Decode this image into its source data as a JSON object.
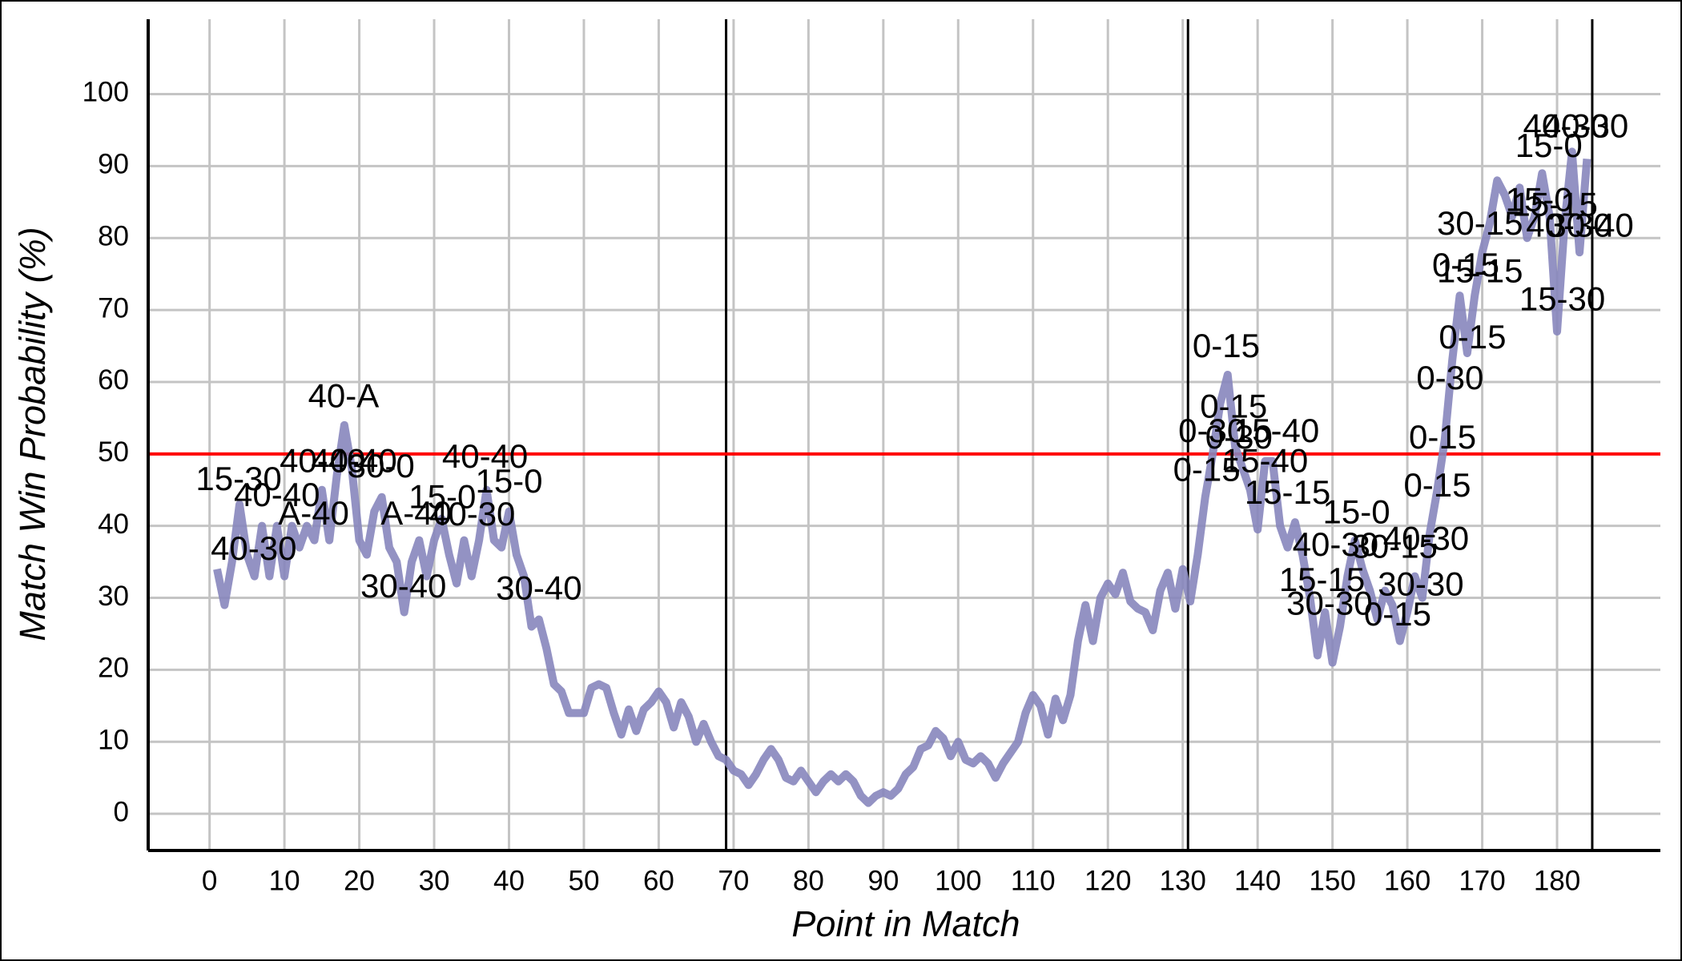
{
  "chart_data": {
    "type": "line",
    "x_label": "Point in Match",
    "y_label": "Match Win Probability (%)",
    "x": [
      1,
      2,
      3,
      4,
      5,
      6,
      7,
      8,
      9,
      10,
      11,
      12,
      13,
      14,
      15,
      16,
      17,
      18,
      19,
      20,
      21,
      22,
      23,
      24,
      25,
      26,
      27,
      28,
      29,
      30,
      31,
      32,
      33,
      34,
      35,
      36,
      37,
      38,
      39,
      40,
      41,
      42,
      43,
      44,
      45,
      46,
      47,
      48,
      49,
      50,
      51,
      52,
      53,
      54,
      55,
      56,
      57,
      58,
      59,
      60,
      61,
      62,
      63,
      64,
      65,
      66,
      67,
      68,
      69,
      70,
      71,
      72,
      73,
      74,
      75,
      76,
      77,
      78,
      79,
      80,
      81,
      82,
      83,
      84,
      85,
      86,
      87,
      88,
      89,
      90,
      91,
      92,
      93,
      94,
      95,
      96,
      97,
      98,
      99,
      100,
      101,
      102,
      103,
      104,
      105,
      106,
      107,
      108,
      109,
      110,
      111,
      112,
      113,
      114,
      115,
      116,
      117,
      118,
      119,
      120,
      121,
      122,
      123,
      124,
      125,
      126,
      127,
      128,
      129,
      130,
      131,
      132,
      133,
      134,
      135,
      136,
      137,
      138,
      139,
      140,
      141,
      142,
      143,
      144,
      145,
      146,
      147,
      148,
      149,
      150,
      151,
      152,
      153,
      154,
      155,
      156,
      157,
      158,
      159,
      160,
      161,
      162,
      163,
      164,
      165,
      166,
      167,
      168,
      169,
      170,
      171,
      172,
      173,
      174,
      175,
      176,
      177,
      178,
      179,
      180,
      181,
      182,
      183,
      184
    ],
    "series": [
      {
        "color": "#8786bd",
        "values": [
          34,
          29,
          35,
          43,
          36,
          33,
          40,
          33,
          40,
          33,
          40,
          37,
          40,
          38,
          45,
          38,
          47,
          54,
          48,
          38,
          36,
          42,
          44,
          37,
          35,
          28,
          35,
          38,
          33,
          38,
          41,
          36,
          32,
          38,
          33,
          38,
          45,
          38,
          37,
          42,
          36,
          33,
          26,
          27,
          23,
          18,
          17,
          14,
          14,
          14,
          17.5,
          18,
          17.5,
          14,
          11,
          14.5,
          11.5,
          14.5,
          15.5,
          17,
          15.5,
          12,
          15.5,
          13.5,
          10,
          12.5,
          10,
          8,
          7.5,
          6,
          5.5,
          4,
          5.5,
          7.5,
          9,
          7.5,
          5,
          4.5,
          6,
          4.5,
          3,
          4.5,
          5.5,
          4.5,
          5.5,
          4.5,
          2.5,
          1.5,
          2.5,
          3,
          2.5,
          3.5,
          5.5,
          6.5,
          9,
          9.5,
          11.5,
          10.5,
          8,
          10,
          7.5,
          7,
          8,
          7,
          5,
          7,
          8.5,
          10,
          14,
          16.5,
          15,
          11,
          16,
          13,
          16.5,
          24,
          29,
          24,
          30,
          32,
          30.5,
          33.5,
          29.5,
          28.5,
          28,
          25.5,
          31,
          33.5,
          28.5,
          34,
          29.5,
          36,
          44,
          50,
          57,
          61,
          51,
          48,
          45,
          39.5,
          49,
          49,
          40,
          37,
          40.5,
          36,
          30,
          22,
          28,
          21,
          26,
          33,
          38,
          34,
          31,
          27,
          31,
          29,
          24,
          28,
          33,
          30,
          39,
          45,
          52,
          63,
          72,
          64,
          72,
          78,
          82,
          88,
          86,
          83,
          87,
          80,
          83,
          89,
          83,
          67,
          82,
          92,
          78,
          91
        ]
      }
    ],
    "xlim": [
      -8.2,
      193.8
    ],
    "ylim": [
      -5.1,
      110.4
    ],
    "xticks": [
      0,
      10,
      20,
      30,
      40,
      50,
      60,
      70,
      80,
      90,
      100,
      110,
      120,
      130,
      140,
      150,
      160,
      170,
      180
    ],
    "yticks": [
      0,
      10,
      20,
      30,
      40,
      50,
      60,
      70,
      80,
      90,
      100
    ],
    "grid": true,
    "vlines": [
      69,
      130.7,
      184.7
    ],
    "vline_color": "#000000",
    "hline": 50,
    "hline_color": "#ff0000",
    "annotations": [
      {
        "text": "15-30",
        "x": 3.9,
        "y": 46.2
      },
      {
        "text": "40-30",
        "x": 5.9,
        "y": 36.5
      },
      {
        "text": "40-40",
        "x": 9,
        "y": 44
      },
      {
        "text": "A-40",
        "x": 13.9,
        "y": 41.4
      },
      {
        "text": "40-40",
        "x": 15.1,
        "y": 48.7
      },
      {
        "text": "40-40",
        "x": 19.3,
        "y": 48.7
      },
      {
        "text": "30-0",
        "x": 22.9,
        "y": 48
      },
      {
        "text": "40-A",
        "x": 17.9,
        "y": 57.7
      },
      {
        "text": "A-40",
        "x": 27.6,
        "y": 41.4
      },
      {
        "text": "30-40",
        "x": 25.9,
        "y": 31.3
      },
      {
        "text": "15-0",
        "x": 31.1,
        "y": 43.7
      },
      {
        "text": "40-30",
        "x": 35.1,
        "y": 41.3
      },
      {
        "text": "40-40",
        "x": 36.8,
        "y": 49.3
      },
      {
        "text": "15-0",
        "x": 40,
        "y": 45.9
      },
      {
        "text": "30-40",
        "x": 44,
        "y": 31
      },
      {
        "text": "0-15",
        "x": 135.8,
        "y": 64.7
      },
      {
        "text": "0-15",
        "x": 136.8,
        "y": 56.3
      },
      {
        "text": "0-30",
        "x": 133.9,
        "y": 52.9
      },
      {
        "text": "0-30",
        "x": 137.5,
        "y": 52
      },
      {
        "text": "15-40",
        "x": 142.5,
        "y": 52.9
      },
      {
        "text": "0-15",
        "x": 133.2,
        "y": 47.5
      },
      {
        "text": "15-40",
        "x": 141,
        "y": 48.7
      },
      {
        "text": "15-15",
        "x": 144,
        "y": 44.3
      },
      {
        "text": "15-0",
        "x": 153.2,
        "y": 41.6
      },
      {
        "text": "40-30",
        "x": 150.4,
        "y": 37.1
      },
      {
        "text": "30-15",
        "x": 158.3,
        "y": 36.8
      },
      {
        "text": "40-30",
        "x": 162.5,
        "y": 37.9
      },
      {
        "text": "15-15",
        "x": 148.6,
        "y": 32.2
      },
      {
        "text": "30-30",
        "x": 149.6,
        "y": 28.9
      },
      {
        "text": "30-30",
        "x": 161.8,
        "y": 31.6
      },
      {
        "text": "0-15",
        "x": 158.7,
        "y": 27.4
      },
      {
        "text": "0-15",
        "x": 164.7,
        "y": 52
      },
      {
        "text": "0-15",
        "x": 164,
        "y": 45.3
      },
      {
        "text": "0-30",
        "x": 165.7,
        "y": 60.2
      },
      {
        "text": "0-15",
        "x": 168.7,
        "y": 65.9
      },
      {
        "text": "0-15",
        "x": 167.8,
        "y": 75.9
      },
      {
        "text": "15-15",
        "x": 169.7,
        "y": 75.1
      },
      {
        "text": "30-15",
        "x": 169.7,
        "y": 81.7
      },
      {
        "text": "15-30",
        "x": 180.7,
        "y": 71.2
      },
      {
        "text": "15-0",
        "x": 178.9,
        "y": 92.5
      },
      {
        "text": "40-30",
        "x": 181.2,
        "y": 95.2
      },
      {
        "text": "40-30",
        "x": 183.8,
        "y": 95.2
      },
      {
        "text": "15-0",
        "x": 177.6,
        "y": 85
      },
      {
        "text": "15-15",
        "x": 179.7,
        "y": 84.3
      },
      {
        "text": "40-30",
        "x": 181.6,
        "y": 81.4
      },
      {
        "text": "30-40",
        "x": 184.5,
        "y": 81.4
      }
    ]
  }
}
